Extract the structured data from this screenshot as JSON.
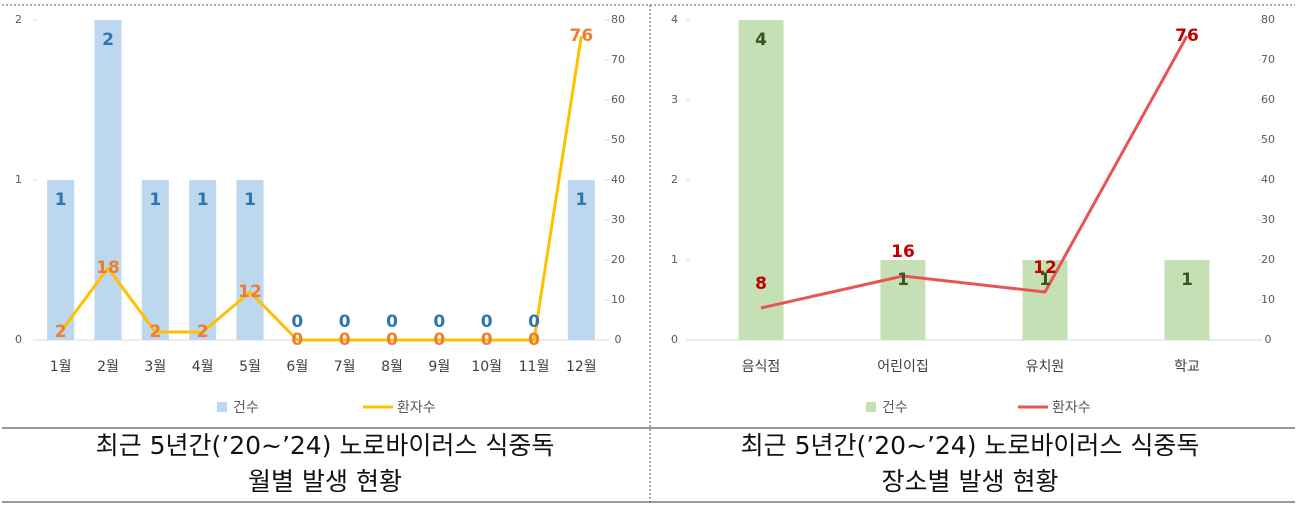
{
  "chart_data": [
    {
      "type": "bar-line",
      "title": "최근 5년간(’20~’24) 노로바이러스 식중독",
      "subtitle": "월별 발생 현황",
      "categories": [
        "1월",
        "2월",
        "3월",
        "4월",
        "5월",
        "6월",
        "7월",
        "8월",
        "9월",
        "10월",
        "11월",
        "12월"
      ],
      "series": [
        {
          "name": "건수",
          "color": "#bdd7ee",
          "label_color": "#2e75b6",
          "values": [
            1,
            2,
            1,
            1,
            1,
            0,
            0,
            0,
            0,
            0,
            0,
            1
          ]
        },
        {
          "name": "환자수",
          "color": "#ffc000",
          "label_color": "#ed7d31",
          "axis": "y2",
          "values": [
            2,
            18,
            2,
            2,
            12,
            0,
            0,
            0,
            0,
            0,
            0,
            76
          ]
        }
      ],
      "ylim": [
        0,
        2
      ],
      "yticks": [
        0,
        1,
        2
      ],
      "y2lim": [
        0,
        80
      ],
      "y2ticks": [
        0,
        10,
        20,
        30,
        40,
        50,
        60,
        70,
        80
      ],
      "grid": false
    },
    {
      "type": "bar-line",
      "title": "최근 5년간(’20~’24) 노로바이러스 식중독",
      "subtitle": "장소별 발생 현황",
      "categories": [
        "음식점",
        "어린이집",
        "유치원",
        "학교"
      ],
      "series": [
        {
          "name": "건수",
          "color": "#c5e0b4",
          "label_color": "#375623",
          "values": [
            4,
            1,
            1,
            1
          ]
        },
        {
          "name": "환자수",
          "color": "#e85454",
          "label_color": "#c00000",
          "axis": "y2",
          "values": [
            8,
            16,
            12,
            76
          ]
        }
      ],
      "ylim": [
        0,
        4
      ],
      "yticks": [
        0,
        1,
        2,
        3,
        4
      ],
      "y2lim": [
        0,
        80
      ],
      "y2ticks": [
        0,
        10,
        20,
        30,
        40,
        50,
        60,
        70,
        80
      ],
      "grid": false
    }
  ]
}
